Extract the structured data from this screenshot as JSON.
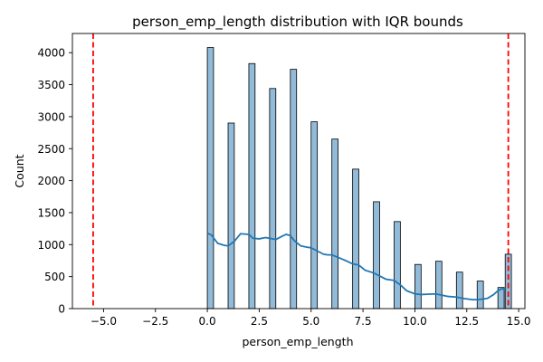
{
  "chart_data": {
    "type": "bar",
    "title": "person_emp_length distribution with IQR bounds",
    "xlabel": "person_emp_length",
    "ylabel": "Count",
    "xlim": [
      -6.5,
      15.3
    ],
    "ylim": [
      0,
      4300
    ],
    "grid": false,
    "legend": "none",
    "x_ticks": [
      -5.0,
      -2.5,
      0.0,
      2.5,
      5.0,
      7.5,
      10.0,
      12.5,
      15.0
    ],
    "x_tick_labels": [
      "−5.0",
      "−2.5",
      "0.0",
      "2.5",
      "5.0",
      "7.5",
      "10.0",
      "12.5",
      "15.0"
    ],
    "y_ticks": [
      0,
      500,
      1000,
      1500,
      2000,
      2500,
      3000,
      3500,
      4000
    ],
    "y_tick_labels": [
      "0",
      "500",
      "1000",
      "1500",
      "2000",
      "2500",
      "3000",
      "3500",
      "4000"
    ],
    "histogram": {
      "bin_width": 0.3,
      "bins": [
        {
          "x": 0,
          "count": 4080
        },
        {
          "x": 1,
          "count": 2900
        },
        {
          "x": 2,
          "count": 3830
        },
        {
          "x": 3,
          "count": 3440
        },
        {
          "x": 4,
          "count": 3740
        },
        {
          "x": 5,
          "count": 2920
        },
        {
          "x": 6,
          "count": 2650
        },
        {
          "x": 7,
          "count": 2180
        },
        {
          "x": 8,
          "count": 1670
        },
        {
          "x": 9,
          "count": 1360
        },
        {
          "x": 10,
          "count": 690
        },
        {
          "x": 11,
          "count": 740
        },
        {
          "x": 12,
          "count": 570
        },
        {
          "x": 13,
          "count": 430
        },
        {
          "x": 14,
          "count": 330
        },
        {
          "x": 14.35,
          "count": 850
        }
      ]
    },
    "kde": {
      "x": [
        0,
        0.2,
        0.5,
        0.8,
        1.0,
        1.3,
        1.6,
        2.0,
        2.2,
        2.5,
        2.8,
        3.0,
        3.3,
        3.6,
        3.8,
        4.0,
        4.2,
        4.5,
        4.8,
        5.0,
        5.3,
        5.6,
        5.8,
        6.0,
        6.3,
        6.6,
        7.0,
        7.3,
        7.6,
        8.0,
        8.3,
        8.6,
        9.0,
        9.3,
        9.6,
        10.0,
        10.3,
        10.6,
        11.0,
        11.3,
        11.6,
        12.0,
        12.4,
        12.8,
        13.0,
        13.3,
        13.5,
        13.8,
        14.0,
        14.2,
        14.4
      ],
      "y": [
        1180,
        1150,
        1020,
        990,
        980,
        1050,
        1170,
        1160,
        1100,
        1090,
        1110,
        1100,
        1080,
        1130,
        1160,
        1140,
        1060,
        980,
        960,
        950,
        900,
        850,
        840,
        840,
        800,
        760,
        700,
        680,
        600,
        560,
        510,
        460,
        440,
        370,
        280,
        230,
        220,
        225,
        230,
        210,
        190,
        180,
        155,
        140,
        140,
        150,
        160,
        220,
        280,
        310,
        300
      ]
    },
    "iqr_bounds": [
      -5.5,
      14.5
    ],
    "colors": {
      "bar_fill": "#92bbd9",
      "bar_edge": "#000000",
      "kde_line": "#1f77b4",
      "bound_line": "#ff0000"
    }
  }
}
